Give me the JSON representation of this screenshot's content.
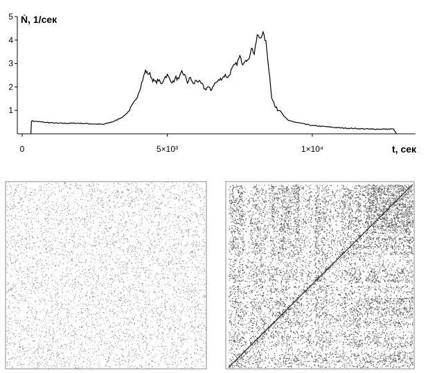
{
  "chart_data": [
    {
      "type": "line",
      "title": "",
      "ylabel": "Ṅ, 1/сек",
      "xlabel": "t, сек",
      "xlim": [
        0,
        12000
      ],
      "ylim": [
        0,
        5
      ],
      "xticks": [
        {
          "value": 0,
          "label": "0"
        },
        {
          "value": 5000,
          "label": "5×10³"
        },
        {
          "value": 10000,
          "label": "1×10⁴"
        }
      ],
      "yticks": [
        {
          "value": 1,
          "label": "1"
        },
        {
          "value": 2,
          "label": "2"
        },
        {
          "value": 3,
          "label": "3"
        },
        {
          "value": 4,
          "label": "4"
        },
        {
          "value": 5,
          "label": "5"
        }
      ],
      "grid": false,
      "series": [
        {
          "x": [
            300,
            320,
            700,
            1200,
            2000,
            2800,
            3200,
            3500,
            3700,
            3900,
            4050,
            4150,
            4250,
            4300,
            4400,
            4500,
            4600,
            4700,
            4800,
            4900,
            5000,
            5100,
            5200,
            5300,
            5400,
            5500,
            5600,
            5700,
            5800,
            5900,
            6000,
            6100,
            6200,
            6300,
            6400,
            6500,
            6600,
            6700,
            6800,
            6900,
            7000,
            7100,
            7200,
            7300,
            7400,
            7500,
            7600,
            7700,
            7800,
            7900,
            8000,
            8100,
            8200,
            8300,
            8400,
            8500,
            8600,
            8700,
            8800,
            8900,
            9000,
            9100,
            9200,
            9400,
            9600,
            9800,
            10000,
            10500,
            11000,
            12000,
            12800,
            12900
          ],
          "values": [
            0,
            0.55,
            0.5,
            0.45,
            0.45,
            0.4,
            0.55,
            0.75,
            1.0,
            1.4,
            1.9,
            2.3,
            2.7,
            2.6,
            2.55,
            2.3,
            2.2,
            2.3,
            2.1,
            2.4,
            2.5,
            2.3,
            2.2,
            2.4,
            2.3,
            2.65,
            2.5,
            2.2,
            2.4,
            2.1,
            2.3,
            2.2,
            2.1,
            1.9,
            2.0,
            1.85,
            2.1,
            2.2,
            2.3,
            2.4,
            2.5,
            2.4,
            2.7,
            2.9,
            3.0,
            3.3,
            3.0,
            3.2,
            3.1,
            3.7,
            3.4,
            4.2,
            4.1,
            4.3,
            3.9,
            2.8,
            1.6,
            1.2,
            1.0,
            1.0,
            0.8,
            0.65,
            0.55,
            0.5,
            0.45,
            0.4,
            0.35,
            0.3,
            0.25,
            0.2,
            0.2,
            0
          ]
        }
      ]
    },
    {
      "type": "heatmap",
      "title": "",
      "pattern": "sparse uniform random dots"
    },
    {
      "type": "heatmap",
      "title": "",
      "pattern": "recurrence plot with diagonal line and dense block structure"
    }
  ]
}
